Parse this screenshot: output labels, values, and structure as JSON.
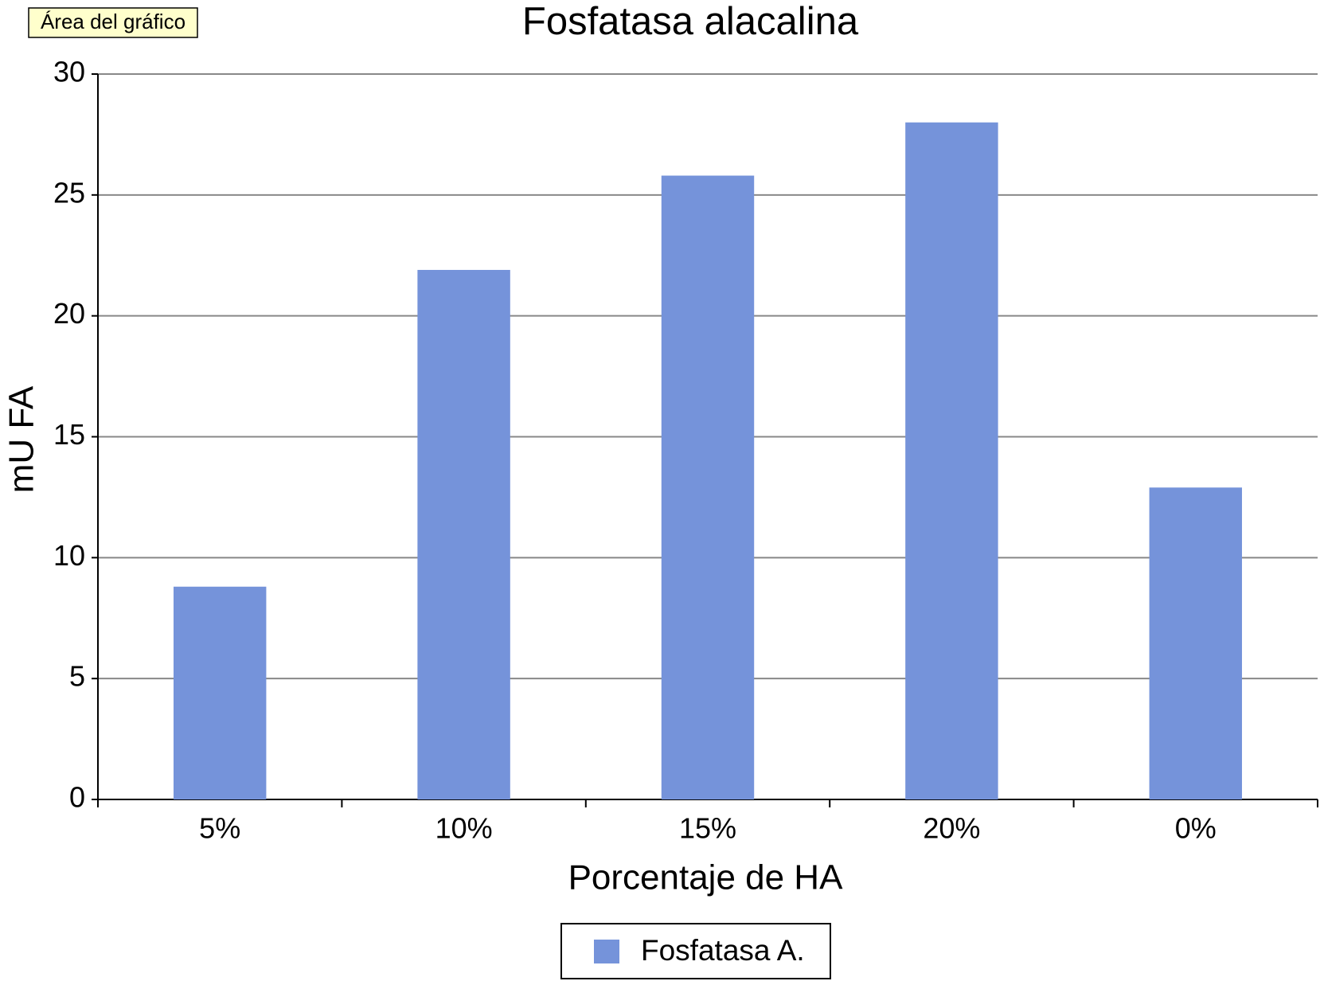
{
  "chart_data": {
    "type": "bar",
    "title": "Fosfatasa alacalina",
    "tooltip": "Área del gráfico",
    "x_label": "Porcentaje de HA",
    "y_label": "mU FA",
    "categories": [
      "5%",
      "10%",
      "15%",
      "20%",
      "0%"
    ],
    "series": [
      {
        "name": "Fosfatasa A.",
        "color": "#7593da",
        "values": [
          8.8,
          21.9,
          25.8,
          28.0,
          12.9
        ]
      }
    ],
    "ylim": [
      0,
      30
    ],
    "yticks": [
      0,
      5,
      10,
      15,
      20,
      25,
      30
    ],
    "grid": true,
    "legend": "bottom"
  }
}
